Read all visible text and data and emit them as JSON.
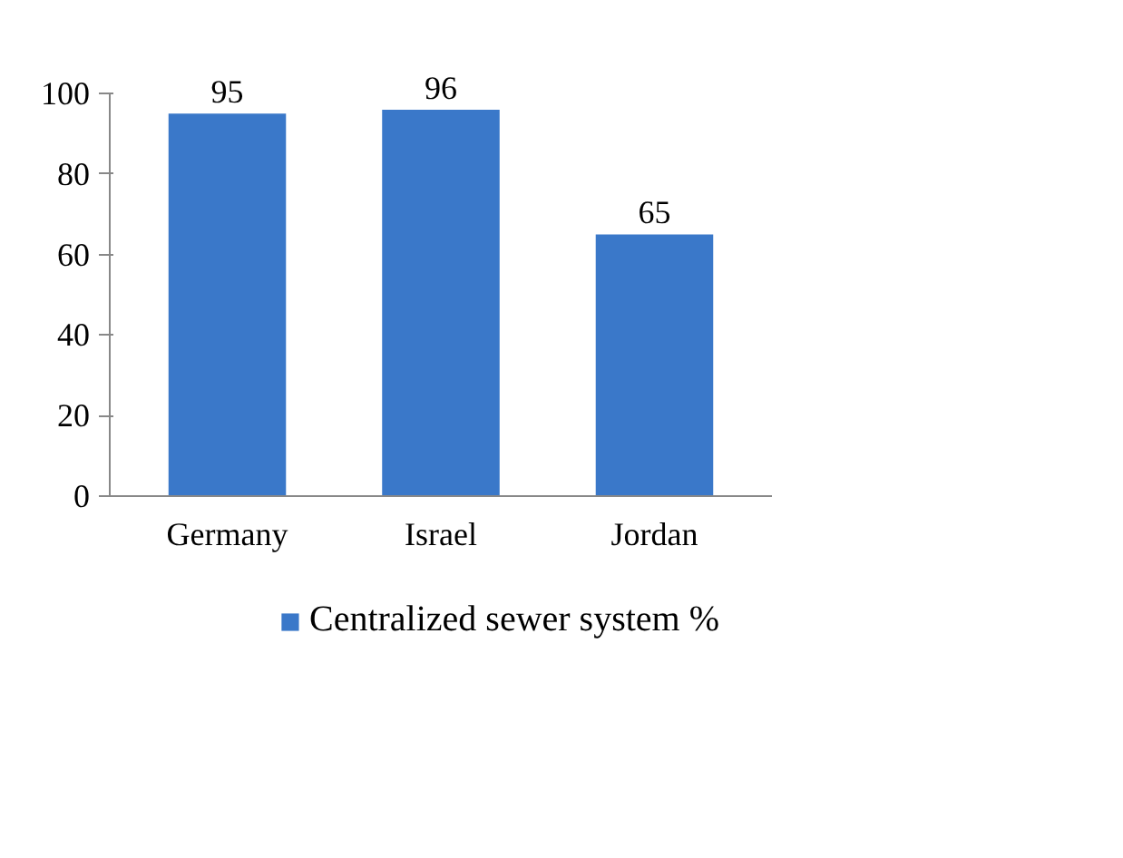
{
  "chart_data": {
    "type": "bar",
    "categories": [
      "Germany",
      "Israel",
      "Jordan"
    ],
    "series": [
      {
        "name": "Centralized sewer system %",
        "color": "#3a78c9",
        "values": [
          95,
          96,
          65
        ]
      }
    ],
    "ylim": [
      0,
      100
    ],
    "yticks": [
      0,
      20,
      40,
      60,
      80,
      100
    ],
    "grid": false,
    "legend": "bottom",
    "data_labels": true
  }
}
